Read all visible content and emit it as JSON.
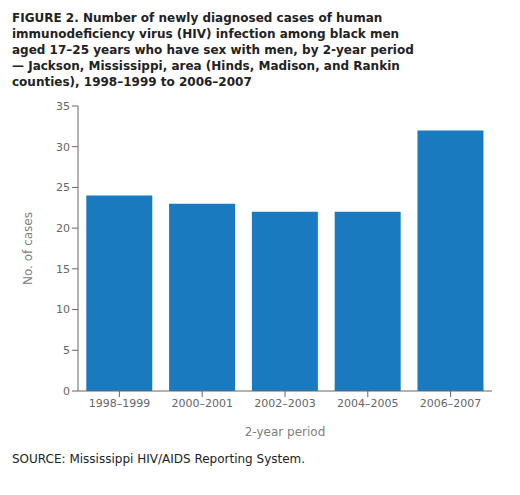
{
  "chart_data": {
    "type": "bar",
    "title": "FIGURE 2. Number of newly diagnosed cases of human\nimmunodeficiency virus (HIV) infection among black men\naged 17–25 years who have sex with men, by 2-year period\n— Jackson, Mississippi, area (Hinds, Madison, and Rankin\ncounties), 1998–1999 to 2006–2007",
    "annotations": [
      "SOURCE: Mississippi HIV/AIDS Reporting System."
    ],
    "x_label": "2-year period",
    "y_label": "No. of cases",
    "categories": [
      "1998–1999",
      "2000–2001",
      "2002–2003",
      "2004–2005",
      "2006–2007"
    ],
    "values": [
      24,
      23,
      22,
      22,
      32
    ],
    "color": "#1a7abf",
    "ylim": [
      0,
      35
    ],
    "yticks": [
      0,
      5,
      10,
      15,
      20,
      25,
      30,
      35
    ],
    "grid": false
  }
}
